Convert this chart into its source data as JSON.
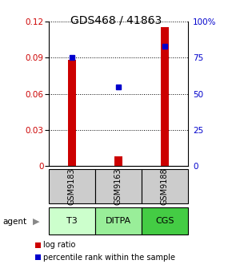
{
  "title": "GDS468 / 41863",
  "samples": [
    "GSM9183",
    "GSM9163",
    "GSM9188"
  ],
  "agents": [
    "T3",
    "DITPA",
    "CGS"
  ],
  "log_ratios": [
    0.088,
    0.008,
    0.115
  ],
  "percentile_ranks": [
    75.0,
    55.0,
    83.0
  ],
  "ylim_left": [
    0,
    0.12
  ],
  "ylim_right": [
    0,
    100
  ],
  "yticks_left": [
    0,
    0.03,
    0.06,
    0.09,
    0.12
  ],
  "yticks_right": [
    0,
    25,
    50,
    75,
    100
  ],
  "ytick_labels_left": [
    "0",
    "0.03",
    "0.06",
    "0.09",
    "0.12"
  ],
  "ytick_labels_right": [
    "0",
    "25",
    "50",
    "75",
    "100%"
  ],
  "bar_color": "#cc0000",
  "dot_color": "#0000cc",
  "agent_colors": [
    "#ccffcc",
    "#99ee99",
    "#44cc44"
  ],
  "sample_bg": "#cccccc",
  "bar_width": 0.18,
  "legend_log_ratio": "log ratio",
  "legend_percentile": "percentile rank within the sample",
  "agent_label": "agent"
}
